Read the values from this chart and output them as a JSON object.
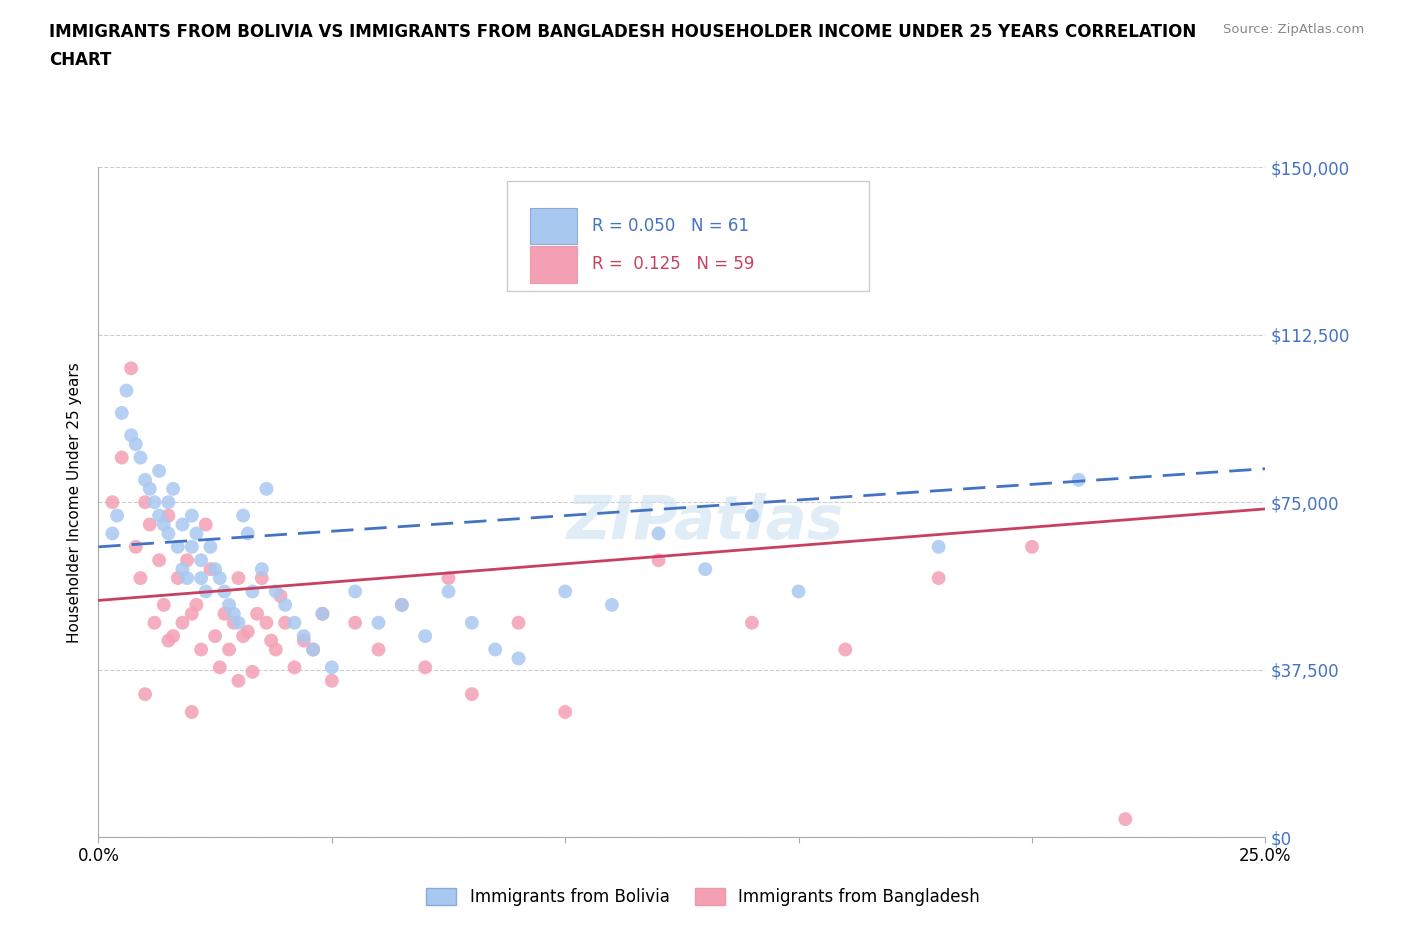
{
  "title_line1": "IMMIGRANTS FROM BOLIVIA VS IMMIGRANTS FROM BANGLADESH HOUSEHOLDER INCOME UNDER 25 YEARS CORRELATION",
  "title_line2": "CHART",
  "source": "Source: ZipAtlas.com",
  "ylabel": "Householder Income Under 25 years",
  "xlim": [
    0.0,
    0.25
  ],
  "ylim": [
    0,
    150000
  ],
  "xtick_positions": [
    0.0,
    0.05,
    0.1,
    0.15,
    0.2,
    0.25
  ],
  "xtick_labels": [
    "0.0%",
    "",
    "",
    "",
    "",
    "25.0%"
  ],
  "ytick_labels": [
    "$0",
    "$37,500",
    "$75,000",
    "$112,500",
    "$150,000"
  ],
  "yticks": [
    0,
    37500,
    75000,
    112500,
    150000
  ],
  "bolivia_color": "#a8c8f0",
  "bangladesh_color": "#f4a0b4",
  "bolivia_line_color": "#4472c4",
  "bangladesh_line_color": "#c84060",
  "R_bolivia": 0.05,
  "N_bolivia": 61,
  "R_bangladesh": 0.125,
  "N_bangladesh": 59,
  "legend_label_1": "Immigrants from Bolivia",
  "legend_label_2": "Immigrants from Bangladesh",
  "watermark": "ZIPatlas",
  "bolivia_x": [
    0.003,
    0.004,
    0.005,
    0.006,
    0.007,
    0.008,
    0.009,
    0.01,
    0.011,
    0.012,
    0.013,
    0.013,
    0.014,
    0.015,
    0.015,
    0.016,
    0.017,
    0.018,
    0.018,
    0.019,
    0.02,
    0.02,
    0.021,
    0.022,
    0.022,
    0.023,
    0.024,
    0.025,
    0.026,
    0.027,
    0.028,
    0.029,
    0.03,
    0.031,
    0.032,
    0.033,
    0.035,
    0.036,
    0.038,
    0.04,
    0.042,
    0.044,
    0.046,
    0.048,
    0.05,
    0.055,
    0.06,
    0.065,
    0.07,
    0.075,
    0.08,
    0.085,
    0.09,
    0.1,
    0.11,
    0.12,
    0.13,
    0.14,
    0.15,
    0.18,
    0.21
  ],
  "bolivia_y": [
    68000,
    72000,
    95000,
    100000,
    90000,
    88000,
    85000,
    80000,
    78000,
    75000,
    72000,
    82000,
    70000,
    75000,
    68000,
    78000,
    65000,
    70000,
    60000,
    58000,
    72000,
    65000,
    68000,
    62000,
    58000,
    55000,
    65000,
    60000,
    58000,
    55000,
    52000,
    50000,
    48000,
    72000,
    68000,
    55000,
    60000,
    78000,
    55000,
    52000,
    48000,
    45000,
    42000,
    50000,
    38000,
    55000,
    48000,
    52000,
    45000,
    55000,
    48000,
    42000,
    40000,
    55000,
    52000,
    68000,
    60000,
    72000,
    55000,
    65000,
    80000
  ],
  "bangladesh_x": [
    0.003,
    0.005,
    0.007,
    0.008,
    0.009,
    0.01,
    0.011,
    0.012,
    0.013,
    0.014,
    0.015,
    0.016,
    0.017,
    0.018,
    0.019,
    0.02,
    0.021,
    0.022,
    0.023,
    0.024,
    0.025,
    0.026,
    0.027,
    0.028,
    0.029,
    0.03,
    0.031,
    0.032,
    0.033,
    0.034,
    0.035,
    0.036,
    0.037,
    0.038,
    0.039,
    0.04,
    0.042,
    0.044,
    0.046,
    0.048,
    0.05,
    0.055,
    0.06,
    0.065,
    0.07,
    0.075,
    0.08,
    0.09,
    0.1,
    0.12,
    0.14,
    0.16,
    0.18,
    0.2,
    0.22,
    0.01,
    0.015,
    0.02,
    0.03
  ],
  "bangladesh_y": [
    75000,
    85000,
    105000,
    65000,
    58000,
    75000,
    70000,
    48000,
    62000,
    52000,
    72000,
    45000,
    58000,
    48000,
    62000,
    50000,
    52000,
    42000,
    70000,
    60000,
    45000,
    38000,
    50000,
    42000,
    48000,
    58000,
    45000,
    46000,
    37000,
    50000,
    58000,
    48000,
    44000,
    42000,
    54000,
    48000,
    38000,
    44000,
    42000,
    50000,
    35000,
    48000,
    42000,
    52000,
    38000,
    58000,
    32000,
    48000,
    28000,
    62000,
    48000,
    42000,
    58000,
    65000,
    4000,
    32000,
    44000,
    28000,
    35000
  ]
}
